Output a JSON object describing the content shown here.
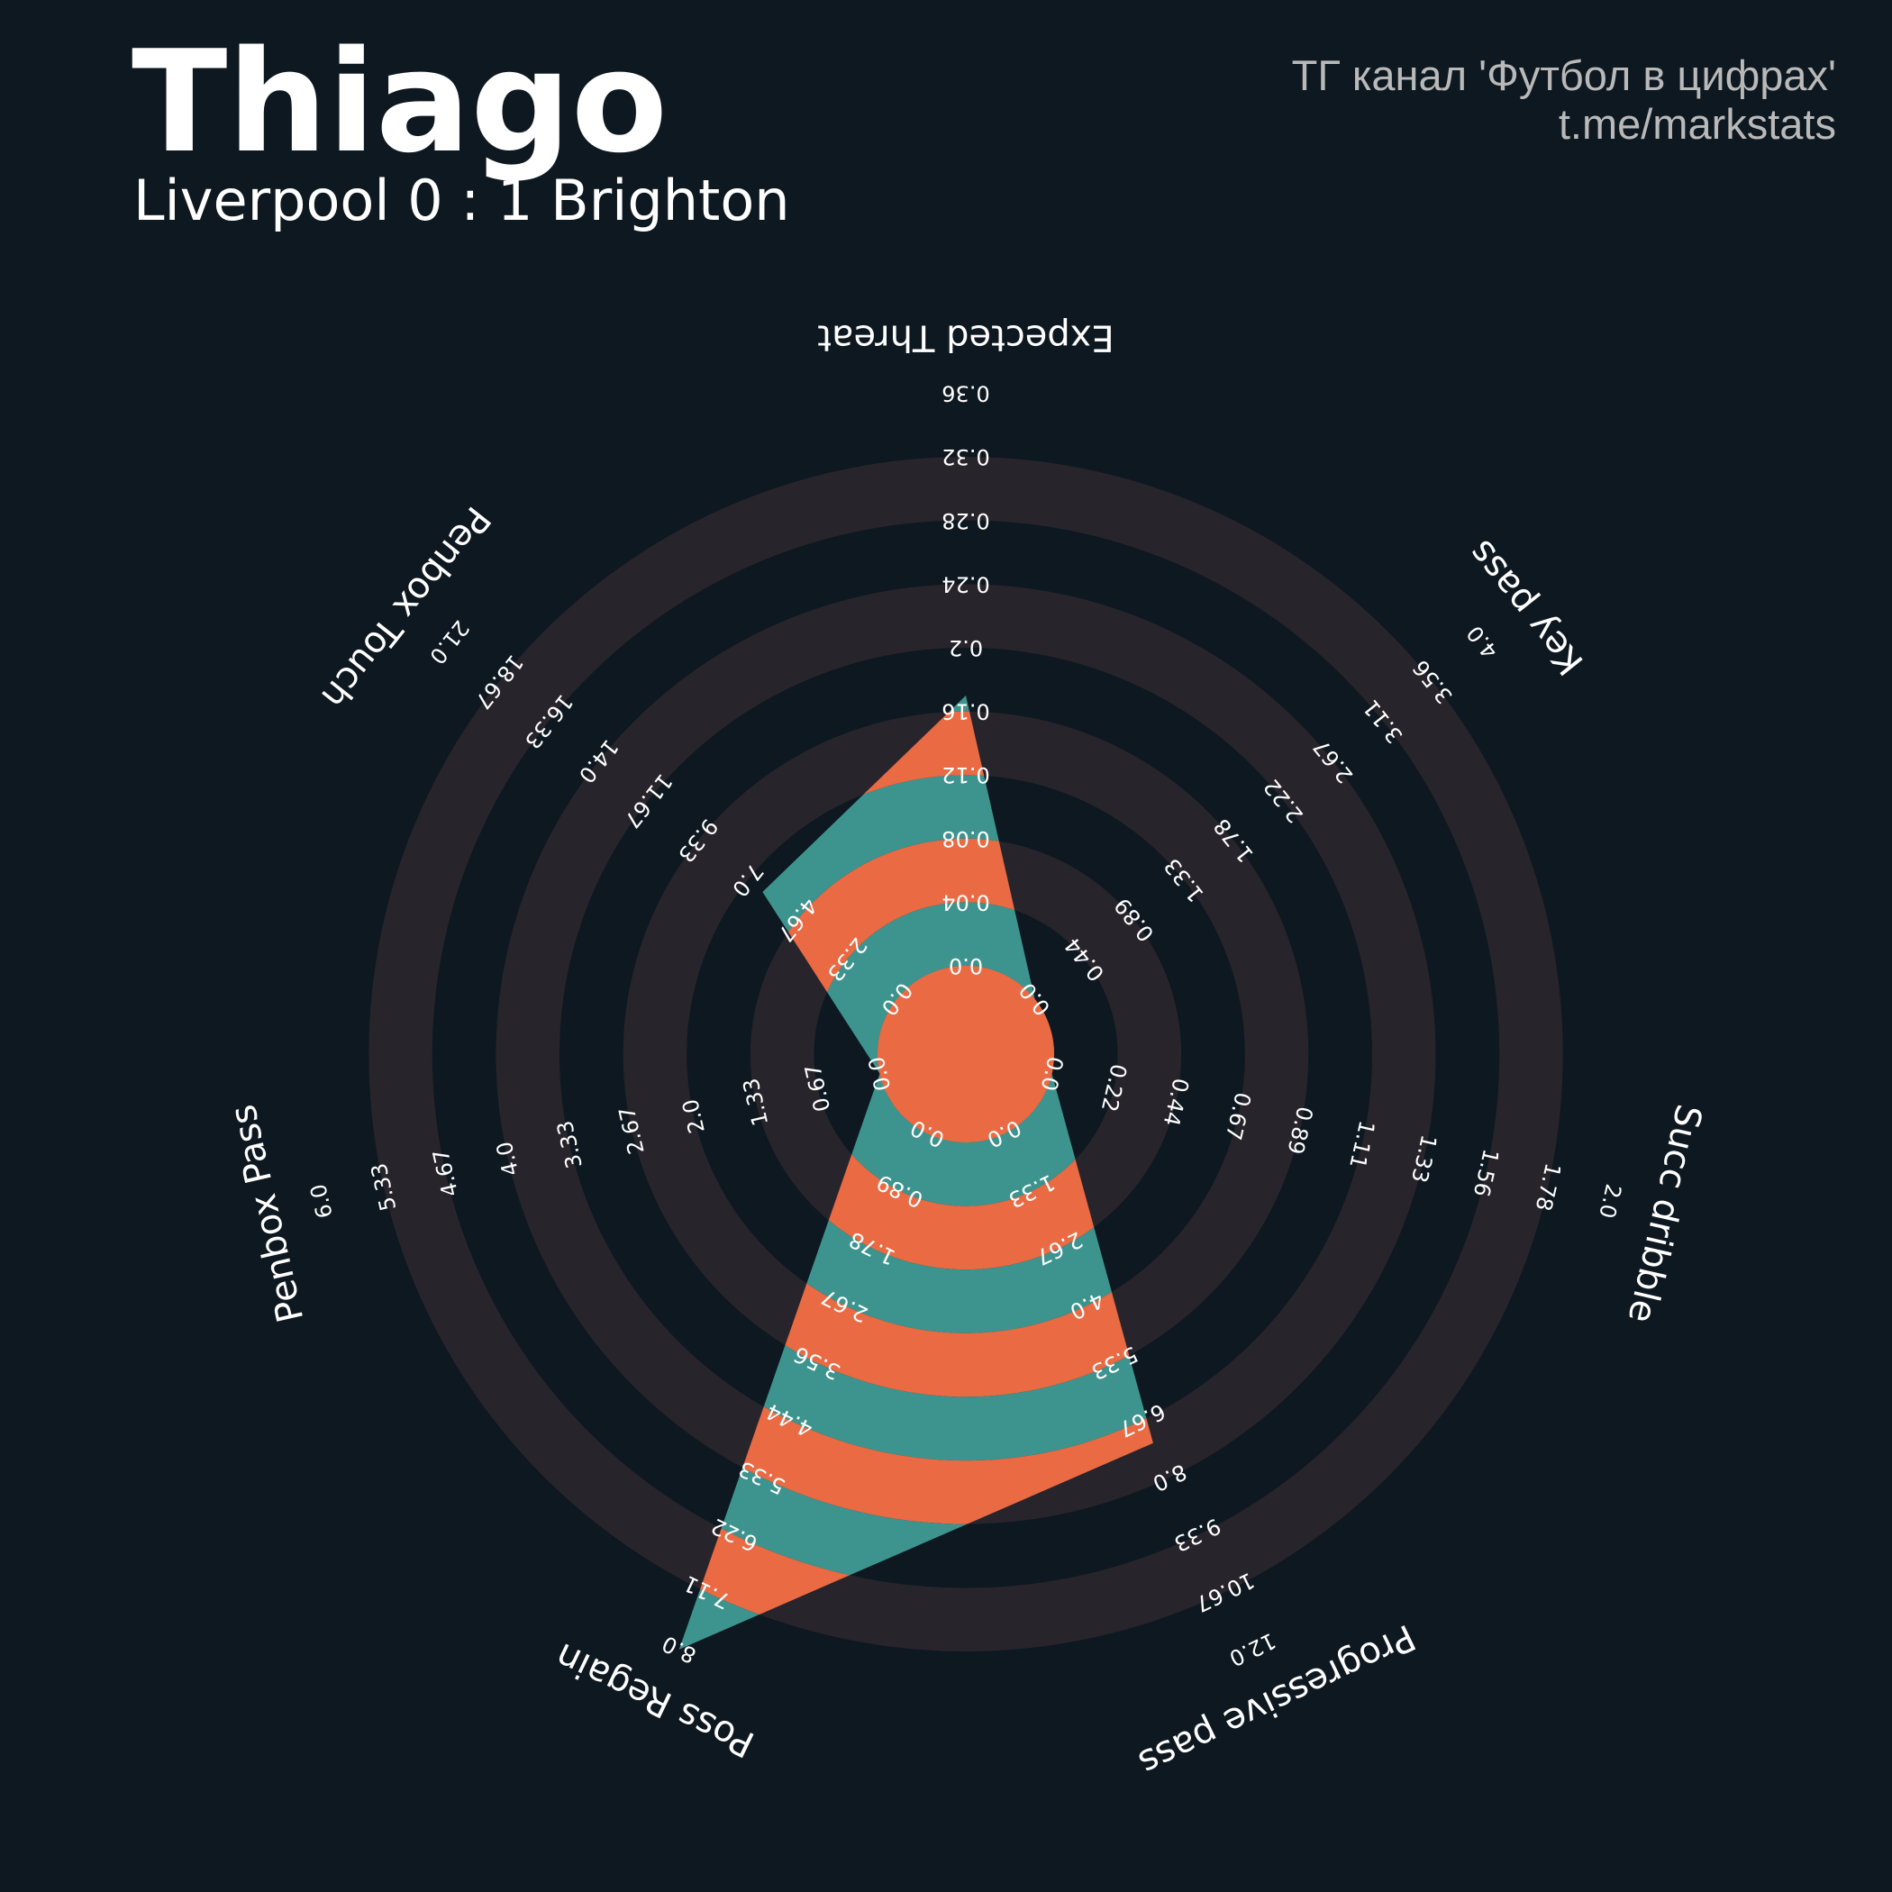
{
  "header": {
    "title": "Thiago",
    "subtitle": "Liverpool 0 : 1 Brighton",
    "credit_line1": "ТГ канал 'Футбол в цифрах'",
    "credit_line2": "t.me/markstats"
  },
  "colors": {
    "background": "#0e1820",
    "ring_band": "#28242b",
    "polygon_orange": "#e96a43",
    "polygon_teal": "#3d948e",
    "text": "#ffffff"
  },
  "chart_data": {
    "type": "radar",
    "parameters": [
      "Expected Threat",
      "Key pass",
      "Succ dribble",
      "Progressive pass",
      "Poss Regain",
      "Penbox Pass",
      "Penbox Touch"
    ],
    "values": [
      0.17,
      0,
      0,
      7.2,
      8,
      0,
      6.3
    ],
    "ranges": [
      [
        0,
        0.36
      ],
      [
        0,
        4.0
      ],
      [
        0,
        2.0
      ],
      [
        0,
        12.0
      ],
      [
        0,
        8.0
      ],
      [
        0,
        6.0
      ],
      [
        0,
        21.0
      ]
    ],
    "tick_labels": [
      [
        "0.0",
        "0.04",
        "0.08",
        "0.12",
        "0.16",
        "0.2",
        "0.24",
        "0.28",
        "0.32",
        "0.36"
      ],
      [
        "0.0",
        "0.44",
        "0.89",
        "1.33",
        "1.78",
        "2.22",
        "2.67",
        "3.11",
        "3.56",
        "4.0"
      ],
      [
        "0.0",
        "0.22",
        "0.44",
        "0.67",
        "0.89",
        "1.11",
        "1.33",
        "1.56",
        "1.78",
        "2.0"
      ],
      [
        "0.0",
        "1.33",
        "2.67",
        "4.0",
        "5.33",
        "6.67",
        "8.0",
        "9.33",
        "10.67",
        "12.0"
      ],
      [
        "0.0",
        "0.89",
        "1.78",
        "2.67",
        "3.56",
        "4.44",
        "5.33",
        "6.22",
        "7.11",
        "8.0"
      ],
      [
        "0.0",
        "0.67",
        "1.33",
        "2.0",
        "2.67",
        "3.33",
        "4.0",
        "4.67",
        "5.33",
        "6.0"
      ],
      [
        "0.0",
        "2.33",
        "4.67",
        "7.0",
        "9.33",
        "11.67",
        "14.0",
        "16.33",
        "18.67",
        "21.0"
      ]
    ]
  }
}
